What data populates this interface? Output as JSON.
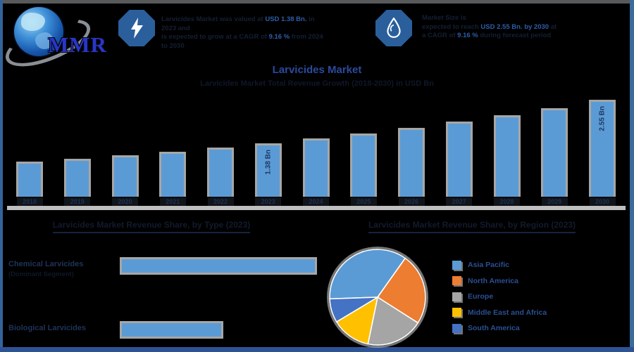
{
  "brand": {
    "logo_text": "MMR"
  },
  "header": {
    "blurbs": [
      {
        "icon": "lightning-icon",
        "lines": [
          [
            {
              "text": "Larvicides Market was valued at ",
              "highlight": false
            },
            {
              "text": "USD 1.38 Bn.",
              "highlight": true
            },
            {
              "text": " in 2023 and",
              "highlight": false
            }
          ],
          [
            {
              "text": "is expected to grow at a CAGR of ",
              "highlight": false
            },
            {
              "text": "9.16 %",
              "highlight": true
            },
            {
              "text": " from 2024 to 2030",
              "highlight": false
            }
          ]
        ]
      },
      {
        "icon": "droplet-icon",
        "lines": [
          [
            {
              "text": "Market Size is",
              "highlight": false
            }
          ],
          [
            {
              "text": "expected to reach ",
              "highlight": false
            },
            {
              "text": "USD 2.55 Bn. by 2030",
              "highlight": true
            },
            {
              "text": " at",
              "highlight": false
            }
          ],
          [
            {
              "text": "a CAGR of ",
              "highlight": false
            },
            {
              "text": "9.16 %",
              "highlight": true
            },
            {
              "text": " during forecast period",
              "highlight": false
            }
          ]
        ]
      }
    ]
  },
  "chart_data": [
    {
      "type": "bar",
      "title": "Larvicides Market",
      "subtitle": "Larvicides Market Total Revenue Growth (2018-2030) in USD Bn",
      "categories": [
        "2018",
        "2019",
        "2020",
        "2021",
        "2022",
        "2023",
        "2024",
        "2025",
        "2026",
        "2027",
        "2028",
        "2029",
        "2030"
      ],
      "values": [
        0.89,
        0.97,
        1.06,
        1.16,
        1.26,
        1.38,
        1.51,
        1.64,
        1.79,
        1.96,
        2.14,
        2.33,
        2.55
      ],
      "unit": "USD Bn",
      "ylim": [
        0,
        2.7
      ],
      "grid": false,
      "bar_color": "#5B9BD5",
      "bar_border_color": "#A6A6A6",
      "labeled_points": [
        {
          "index": 5,
          "label": "1.38 Bn"
        },
        {
          "index": 12,
          "label": "2.55 Bn"
        }
      ]
    },
    {
      "type": "bar",
      "orientation": "horizontal",
      "title": "Larvicides Market Revenue Share, by Type (2023)",
      "categories": [
        "Chemical Larvicides",
        "Biological Larvicides"
      ],
      "category_notes": [
        "(Dominant Segment)",
        ""
      ],
      "values": [
        66,
        34
      ],
      "unit": "%",
      "bar_color": "#5B9BD5"
    },
    {
      "type": "pie",
      "title": "Larvicides Market Revenue Share, by Region (2023)",
      "labels": [
        "Asia Pacific",
        "North America",
        "Europe",
        "Middle East and Africa",
        "South America"
      ],
      "values": [
        35,
        24,
        19,
        13,
        8
      ],
      "colors": [
        "#5B9BD5",
        "#ED7D31",
        "#A5A5A5",
        "#FFC000",
        "#4472C4"
      ],
      "legend_position": "right",
      "start_angle_deg_cw_from_top": 268
    }
  ],
  "colors": {
    "accent_blue": "#2B4A9E",
    "bar_fill": "#5B9BD5",
    "bar_border": "#A6A6A6",
    "axis_gray": "#BFBFBF",
    "frame_blue": "#34639C",
    "frame_gray": "#58595B",
    "dark_navy_text": "#1F3864"
  }
}
